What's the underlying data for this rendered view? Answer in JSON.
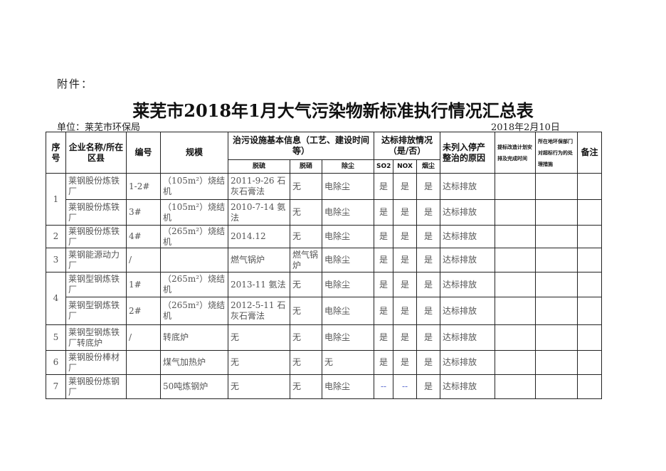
{
  "attachment": "附件：",
  "title": "莱芜市2018年1月大气污染物新标准执行情况汇总表",
  "unit": "单位：莱芜市环保局",
  "date": "2018年2月10日",
  "headers": {
    "seq": "序号",
    "company": "企业名称/所在区县",
    "code": "编号",
    "scale": "规模",
    "facility": "治污设施基本信息（工艺、建设时间等）",
    "desulf": "脱硫",
    "denitr": "脱硝",
    "dust": "除尘",
    "compliance": "达标排放情况（是/否）",
    "so2": "SO2",
    "nox": "NOX",
    "smoke": "烟尘",
    "reason": "未列入停产整治的原因",
    "plan": "提标改造计划安排及完成时间",
    "measures": "所在地环保部门对超标行为的处理措施",
    "remark": "备注"
  },
  "groups": [
    {
      "seq": "1",
      "rows": [
        {
          "company": "莱钢股份炼铁厂",
          "code": "1-2#",
          "scale": "（105m²）烧结机",
          "desulf": "2011-9-26 石灰石膏法",
          "denitr": "无",
          "dust": "电除尘",
          "so2": "是",
          "nox": "是",
          "smoke": "是",
          "reason": "达标排放",
          "plan": "",
          "measures": "",
          "remark": ""
        },
        {
          "company": "莱钢股份炼铁厂",
          "code": "3#",
          "scale": "（105m²）烧结机",
          "desulf": "2010-7-14 氨法",
          "denitr": "无",
          "dust": "电除尘",
          "so2": "是",
          "nox": "是",
          "smoke": "是",
          "reason": "达标排放",
          "plan": "",
          "measures": "",
          "remark": ""
        }
      ]
    },
    {
      "seq": "2",
      "rows": [
        {
          "company": "莱钢股份炼铁厂",
          "code": "4#",
          "scale": "（265m²）烧结机",
          "desulf": "2014.12",
          "denitr": "无",
          "dust": "电除尘",
          "so2": "是",
          "nox": "是",
          "smoke": "是",
          "reason": "达标排放",
          "plan": "",
          "measures": "",
          "remark": ""
        }
      ]
    },
    {
      "seq": "3",
      "rows": [
        {
          "company": "莱钢能源动力厂",
          "code": "/",
          "scale": "",
          "desulf": "燃气锅炉",
          "denitr": "燃气锅炉",
          "dust": "电除尘",
          "so2": "是",
          "nox": "是",
          "smoke": "是",
          "reason": "达标排放",
          "plan": "",
          "measures": "",
          "remark": ""
        }
      ]
    },
    {
      "seq": "4",
      "rows": [
        {
          "company": "莱钢型钢炼铁厂",
          "code": "1#",
          "scale": "（265m²）烧结机",
          "desulf": "2013-11 氨法",
          "denitr": "无",
          "dust": "电除尘",
          "so2": "是",
          "nox": "是",
          "smoke": "是",
          "reason": "达标排放",
          "plan": "",
          "measures": "",
          "remark": ""
        },
        {
          "company": "莱钢型钢炼铁厂",
          "code": "2#",
          "scale": "（265m²）烧结机",
          "desulf": "2012-5-11 石灰石膏法",
          "denitr": "无",
          "dust": "电除尘",
          "so2": "是",
          "nox": "是",
          "smoke": "是",
          "reason": "达标排放",
          "plan": "",
          "measures": "",
          "remark": ""
        }
      ]
    },
    {
      "seq": "5",
      "rows": [
        {
          "company": "莱钢型钢炼铁厂转底炉",
          "code": "/",
          "scale": "转底炉",
          "desulf": "无",
          "denitr": "无",
          "dust": "电除尘",
          "so2": "是",
          "nox": "是",
          "smoke": "是",
          "reason": "达标排放",
          "plan": "",
          "measures": "",
          "remark": ""
        }
      ]
    },
    {
      "seq": "6",
      "rows": [
        {
          "company": "莱钢股份棒材厂",
          "code": "",
          "scale": "煤气加热炉",
          "desulf": "无",
          "denitr": "无",
          "dust": "无",
          "so2": "是",
          "nox": "是",
          "smoke": "是",
          "reason": "达标排放",
          "plan": "",
          "measures": "",
          "remark": ""
        }
      ]
    },
    {
      "seq": "7",
      "rows": [
        {
          "company": "莱钢股份炼钢厂",
          "code": "",
          "scale": "50吨炼钢炉",
          "desulf": "无",
          "denitr": "无",
          "dust": "电除尘",
          "so2": "--",
          "nox": "--",
          "smoke": "是",
          "reason": "达标排放",
          "plan": "",
          "measures": "",
          "remark": ""
        }
      ]
    }
  ]
}
